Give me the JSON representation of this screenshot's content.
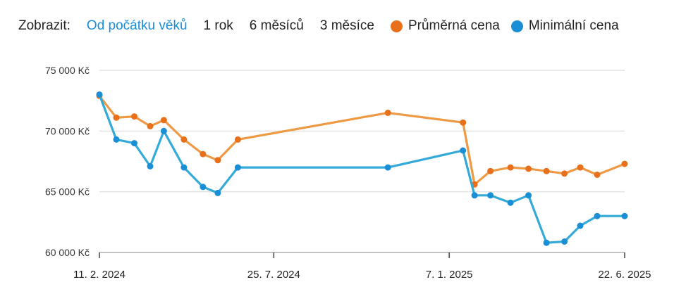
{
  "toolbar": {
    "label": "Zobrazit:",
    "ranges": [
      {
        "label": "Od počátku věků",
        "active": true
      },
      {
        "label": "1 rok",
        "active": false
      },
      {
        "label": "6 měsíců",
        "active": false
      },
      {
        "label": "3 měsíce",
        "active": false
      }
    ]
  },
  "chart_data": {
    "type": "line",
    "grid": true,
    "legend_position": "top-right",
    "ylim": [
      60000,
      75000
    ],
    "xlim": [
      "2024-02-11",
      "2025-06-22"
    ],
    "yticks": [
      75000,
      70000,
      65000,
      60000
    ],
    "ytick_labels": [
      "75 000 Kč",
      "70 000 Kč",
      "65 000 Kč",
      "60 000 Kč"
    ],
    "xticks": [
      "2024-02-11",
      "2024-07-25",
      "2025-01-07",
      "2025-06-22"
    ],
    "xtick_labels": [
      "11. 2. 2024",
      "25. 7. 2024",
      "7. 1. 2025",
      "22. 6. 2025"
    ],
    "series": [
      {
        "name": "Průměrná cena",
        "color": "#e8701a",
        "lineColor": "#ee9a45",
        "points": [
          [
            "2024-02-11",
            72900
          ],
          [
            "2024-02-27",
            71100
          ],
          [
            "2024-03-15",
            71200
          ],
          [
            "2024-03-30",
            70400
          ],
          [
            "2024-04-12",
            70900
          ],
          [
            "2024-05-01",
            69300
          ],
          [
            "2024-05-19",
            68100
          ],
          [
            "2024-06-02",
            67600
          ],
          [
            "2024-06-21",
            69300
          ],
          [
            "2024-11-10",
            71500
          ],
          [
            "2025-01-20",
            70700
          ],
          [
            "2025-01-31",
            65600
          ],
          [
            "2025-02-15",
            66700
          ],
          [
            "2025-03-06",
            67000
          ],
          [
            "2025-03-23",
            66900
          ],
          [
            "2025-04-09",
            66700
          ],
          [
            "2025-04-26",
            66500
          ],
          [
            "2025-05-11",
            67000
          ],
          [
            "2025-05-27",
            66400
          ],
          [
            "2025-06-22",
            67300
          ]
        ]
      },
      {
        "name": "Minimální cena",
        "color": "#1a8fd6",
        "lineColor": "#33aad8",
        "points": [
          [
            "2024-02-11",
            73000
          ],
          [
            "2024-02-27",
            69300
          ],
          [
            "2024-03-15",
            69000
          ],
          [
            "2024-03-30",
            67100
          ],
          [
            "2024-04-12",
            70000
          ],
          [
            "2024-05-01",
            67000
          ],
          [
            "2024-05-19",
            65400
          ],
          [
            "2024-06-02",
            64900
          ],
          [
            "2024-06-21",
            67000
          ],
          [
            "2024-11-10",
            67000
          ],
          [
            "2025-01-20",
            68400
          ],
          [
            "2025-01-31",
            64700
          ],
          [
            "2025-02-15",
            64700
          ],
          [
            "2025-03-06",
            64100
          ],
          [
            "2025-03-23",
            64700
          ],
          [
            "2025-04-09",
            60800
          ],
          [
            "2025-04-26",
            60900
          ],
          [
            "2025-05-11",
            62200
          ],
          [
            "2025-05-27",
            63000
          ],
          [
            "2025-06-22",
            63000
          ]
        ]
      }
    ]
  }
}
